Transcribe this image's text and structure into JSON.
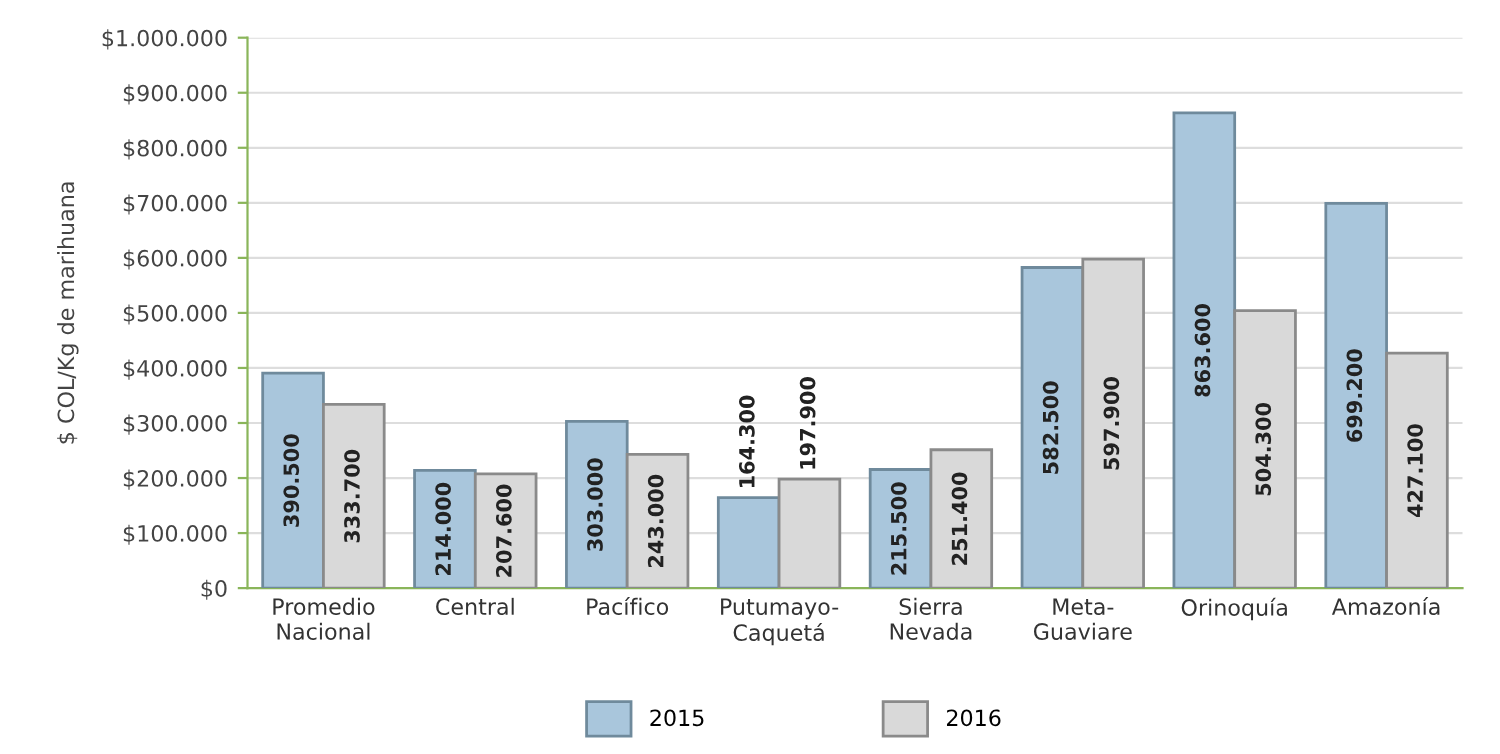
{
  "chart_data": {
    "type": "bar",
    "ylabel": "$ COL/Kg de marihuana",
    "categories": [
      "Promedio\nNacional",
      "Central",
      "Pacífico",
      "Putumayo-\nCaquetá",
      "Sierra\nNevada",
      "Meta-\nGuaviare",
      "Orinoquía",
      "Amazonía"
    ],
    "series": [
      {
        "name": "2015",
        "color": "#a9c6dc",
        "values": [
          390500,
          214000,
          303000,
          164300,
          215500,
          582500,
          863600,
          699200
        ],
        "value_labels": [
          "390.500",
          "214.000",
          "303.000",
          "164.300",
          "215.500",
          "582.500",
          "863.600",
          "699.200"
        ]
      },
      {
        "name": "2016",
        "color": "#d9d9d9",
        "values": [
          333700,
          207600,
          243000,
          197900,
          251400,
          597900,
          504300,
          427100
        ],
        "value_labels": [
          "333.700",
          "207.600",
          "243.000",
          "197.900",
          "251.400",
          "597.900",
          "504.300",
          "427.100"
        ]
      }
    ],
    "ylim": [
      0,
      1000000
    ],
    "yticks": [
      {
        "value": 0,
        "label": "$0"
      },
      {
        "value": 100000,
        "label": "$100.000"
      },
      {
        "value": 200000,
        "label": "$200.000"
      },
      {
        "value": 300000,
        "label": "$300.000"
      },
      {
        "value": 400000,
        "label": "$400.000"
      },
      {
        "value": 500000,
        "label": "$500.000"
      },
      {
        "value": 600000,
        "label": "$600.000"
      },
      {
        "value": 700000,
        "label": "$700.000"
      },
      {
        "value": 800000,
        "label": "$800.000"
      },
      {
        "value": 900000,
        "label": "$900.000"
      },
      {
        "value": 1000000,
        "label": "$1.000.000"
      }
    ],
    "grid": "y",
    "legend": "bottom"
  }
}
